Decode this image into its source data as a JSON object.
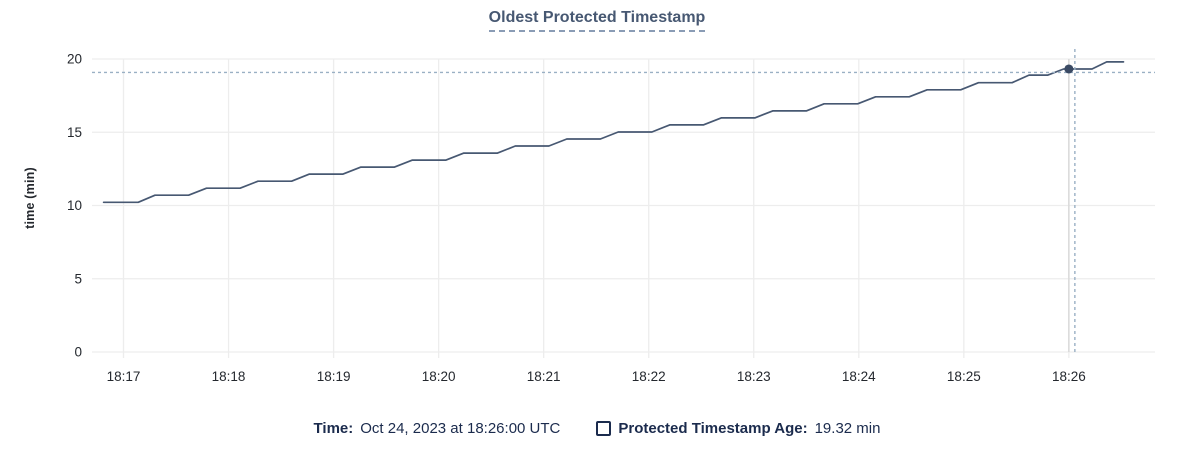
{
  "chart_data": {
    "type": "line",
    "title": "Oldest Protected Timestamp",
    "xlabel": "",
    "ylabel": "time (min)",
    "x_tick_labels": [
      "18:17",
      "18:18",
      "18:19",
      "18:20",
      "18:21",
      "18:22",
      "18:23",
      "18:24",
      "18:25",
      "18:26"
    ],
    "x_tick_minutes": [
      17,
      18,
      19,
      20,
      21,
      22,
      23,
      24,
      25,
      26
    ],
    "y_ticks": [
      0,
      5,
      10,
      15,
      20
    ],
    "xlim_minutes": [
      16.7,
      26.82
    ],
    "ylim": [
      0,
      20
    ],
    "grid": true,
    "legend_position": "bottom",
    "x_unit": "minutes after 18:00 UTC, Oct 24 2023",
    "series": [
      {
        "name": "Protected Timestamp Age",
        "color": "#475872",
        "points": [
          [
            16.81,
            10.22
          ],
          [
            17.14,
            10.22
          ],
          [
            17.3,
            10.7
          ],
          [
            17.62,
            10.7
          ],
          [
            17.79,
            11.18
          ],
          [
            18.11,
            11.18
          ],
          [
            18.28,
            11.66
          ],
          [
            18.6,
            11.66
          ],
          [
            18.77,
            12.14
          ],
          [
            19.09,
            12.14
          ],
          [
            19.26,
            12.62
          ],
          [
            19.58,
            12.62
          ],
          [
            19.75,
            13.1
          ],
          [
            20.07,
            13.1
          ],
          [
            20.24,
            13.58
          ],
          [
            20.56,
            13.58
          ],
          [
            20.73,
            14.06
          ],
          [
            21.05,
            14.06
          ],
          [
            21.22,
            14.54
          ],
          [
            21.54,
            14.54
          ],
          [
            21.71,
            15.02
          ],
          [
            22.03,
            15.02
          ],
          [
            22.2,
            15.5
          ],
          [
            22.52,
            15.5
          ],
          [
            22.69,
            15.98
          ],
          [
            23.01,
            15.98
          ],
          [
            23.18,
            16.46
          ],
          [
            23.5,
            16.46
          ],
          [
            23.67,
            16.94
          ],
          [
            23.99,
            16.94
          ],
          [
            24.16,
            17.42
          ],
          [
            24.48,
            17.42
          ],
          [
            24.65,
            17.9
          ],
          [
            24.97,
            17.9
          ],
          [
            25.14,
            18.38
          ],
          [
            25.46,
            18.38
          ],
          [
            25.62,
            18.9
          ],
          [
            25.8,
            18.9
          ],
          [
            25.95,
            19.32
          ],
          [
            26.22,
            19.32
          ],
          [
            26.36,
            19.8
          ],
          [
            26.52,
            19.8
          ]
        ]
      }
    ],
    "hover": {
      "t_min": 26.0,
      "value": 19.32,
      "x_label": "18:26",
      "value_label": "19.32 min"
    }
  },
  "legend": {
    "time_label": "Time:",
    "time_value": "Oct 24, 2023 at 18:26:00 UTC",
    "series_label": "Protected Timestamp Age:",
    "series_value": "19.32 min"
  },
  "colors": {
    "series_line": "#475872",
    "grid": "#ededed",
    "axis_text": "#24282e",
    "title": "#475872",
    "title_underline": "#8a9cb5",
    "legend_text": "#1b2b4d",
    "hover_track_line": "#d9d9d9",
    "crosshair_dashed": "#9ab0c4",
    "hover_point": "#3a4a64"
  }
}
